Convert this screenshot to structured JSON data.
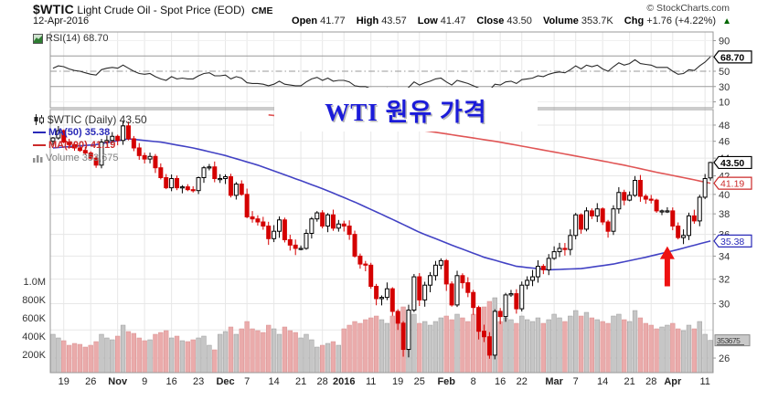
{
  "header": {
    "symbol": "$WTIC",
    "title": "Light Crude Oil - Spot Price (EOD)",
    "exchange": "CME",
    "date": "12-Apr-2016",
    "copyright": "© StockCharts.com",
    "quote": [
      {
        "label": "Open",
        "value": "41.77"
      },
      {
        "label": "High",
        "value": "43.57"
      },
      {
        "label": "Low",
        "value": "41.47"
      },
      {
        "label": "Close",
        "value": "43.50"
      },
      {
        "label": "Volume",
        "value": "353.7K"
      },
      {
        "label": "Chg",
        "value": "+1.76 (+4.22%)"
      }
    ],
    "change_direction": "up"
  },
  "rsi_legend": "RSI(14) 68.70",
  "main_legend": {
    "symbol_line": "$WTIC (Daily) 43.50",
    "ma50_line": "MA(50) 35.38",
    "ma200_line": "MA(200) 41.19",
    "volume_line": "Volume 353,675"
  },
  "overlay": {
    "text": "WTI 원유 가격"
  },
  "colors": {
    "up_candle": "#000000",
    "down_candle": "#d40000",
    "ma50": "#4242c4",
    "ma200": "#e05555",
    "volume_up": "#c6c6c6",
    "volume_down": "#eaabab",
    "rsi_line": "#2a2a2a",
    "grid": "#e7e7e7",
    "panel_border": "#999999",
    "axis_text": "#333333",
    "arrow": "#ee1111",
    "overlay_text": "#1b1bd9",
    "change_up": "#006600",
    "last_price_box": "#000000",
    "ma200_box": "#cc2a2a",
    "ma50_box": "#2a2ab8",
    "volume_box_bg": "#c9c9c9",
    "volume_box_border": "#8a8a8a",
    "volume_box_text": "#3c3c3c"
  },
  "axis_labels": {
    "price_ticks": [
      48,
      46,
      44,
      42,
      40,
      38,
      36,
      34,
      32,
      30,
      26
    ],
    "rsi_ticks": [
      90,
      50,
      30,
      10
    ],
    "volume_ticks": [
      [
        "1.0M",
        1000
      ],
      [
        "800K",
        800
      ],
      [
        "600K",
        600
      ],
      [
        "400K",
        400
      ],
      [
        "200K",
        200
      ]
    ],
    "last_price_label": "43.50",
    "ma200_label": "41.19",
    "ma50_label": "35.38",
    "rsi_last_label": "68.70",
    "volume_last_label": "353675"
  },
  "x_ticks": [
    {
      "i": 2,
      "label": "19",
      "bold": false
    },
    {
      "i": 7,
      "label": "26",
      "bold": false
    },
    {
      "i": 12,
      "label": "Nov",
      "bold": true
    },
    {
      "i": 17,
      "label": "9",
      "bold": false
    },
    {
      "i": 22,
      "label": "16",
      "bold": false
    },
    {
      "i": 27,
      "label": "23",
      "bold": false
    },
    {
      "i": 32,
      "label": "Dec",
      "bold": true
    },
    {
      "i": 36,
      "label": "7",
      "bold": false
    },
    {
      "i": 41,
      "label": "14",
      "bold": false
    },
    {
      "i": 46,
      "label": "21",
      "bold": false
    },
    {
      "i": 50,
      "label": "28",
      "bold": false
    },
    {
      "i": 54,
      "label": "2016",
      "bold": true
    },
    {
      "i": 59,
      "label": "11",
      "bold": false
    },
    {
      "i": 64,
      "label": "19",
      "bold": false
    },
    {
      "i": 68,
      "label": "25",
      "bold": false
    },
    {
      "i": 73,
      "label": "Feb",
      "bold": true
    },
    {
      "i": 78,
      "label": "8",
      "bold": false
    },
    {
      "i": 83,
      "label": "16",
      "bold": false
    },
    {
      "i": 87,
      "label": "22",
      "bold": false
    },
    {
      "i": 93,
      "label": "Mar",
      "bold": true
    },
    {
      "i": 97,
      "label": "7",
      "bold": false
    },
    {
      "i": 102,
      "label": "14",
      "bold": false
    },
    {
      "i": 107,
      "label": "21",
      "bold": false
    },
    {
      "i": 111,
      "label": "28",
      "bold": false
    },
    {
      "i": 115,
      "label": "Apr",
      "bold": true
    },
    {
      "i": 121,
      "label": "11",
      "bold": false
    }
  ],
  "annotation": {
    "type": "arrow-up",
    "index": 114,
    "tip_price": 34.9,
    "tail_price": 31.4
  },
  "chart_data": [
    {
      "type": "line",
      "id": "rsi",
      "title": "RSI(14)",
      "last_value": 68.7,
      "ylim": [
        0,
        100
      ],
      "overbought": 70,
      "oversold": 30,
      "midline": 50,
      "values": [
        54,
        57,
        56,
        53,
        51,
        50,
        48,
        46,
        45,
        52,
        54,
        55,
        54,
        58,
        54,
        50,
        47,
        46,
        47,
        43,
        40,
        38,
        43,
        40,
        41,
        40,
        40,
        44,
        47,
        48,
        44,
        44,
        45,
        40,
        43,
        41,
        35,
        34,
        34,
        33,
        31,
        33,
        37,
        33,
        32,
        31,
        31,
        36,
        40,
        42,
        38,
        41,
        37,
        38,
        38,
        36,
        31,
        30,
        30,
        27,
        25,
        25,
        28,
        24,
        22,
        19,
        29,
        36,
        32,
        35,
        37,
        40,
        41,
        36,
        32,
        38,
        36,
        34,
        31,
        28,
        27,
        25,
        33,
        32,
        36,
        37,
        34,
        39,
        40,
        41,
        44,
        43,
        46,
        48,
        49,
        48,
        52,
        57,
        53,
        58,
        56,
        58,
        53,
        50,
        56,
        61,
        58,
        60,
        65,
        60,
        59,
        58,
        55,
        55,
        55,
        50,
        46,
        47,
        52,
        51,
        57,
        62,
        69
      ]
    },
    {
      "type": "candlestick",
      "id": "price",
      "title": "$WTIC (Daily)",
      "last_close": 43.5,
      "ylim": [
        25.0,
        50.0
      ],
      "scale": "log",
      "first_open": 46.0,
      "last_candle": {
        "open": 41.77,
        "high": 43.57,
        "low": 41.47,
        "close": 43.5
      },
      "closes": [
        46.4,
        47.3,
        45.9,
        45.6,
        45.2,
        44.9,
        44.6,
        44.0,
        43.2,
        45.9,
        46.1,
        46.6,
        46.1,
        47.9,
        46.3,
        45.2,
        44.3,
        43.9,
        44.2,
        42.9,
        41.8,
        40.7,
        41.7,
        40.7,
        40.8,
        40.5,
        40.4,
        41.8,
        42.9,
        43.0,
        41.7,
        41.7,
        41.9,
        39.9,
        41.1,
        40.0,
        37.7,
        37.5,
        37.2,
        36.8,
        35.6,
        36.3,
        37.4,
        35.5,
        35.0,
        34.7,
        34.7,
        36.1,
        37.5,
        38.1,
        36.8,
        37.9,
        36.6,
        37.0,
        36.8,
        36.0,
        34.0,
        33.3,
        33.2,
        31.4,
        30.4,
        30.5,
        31.2,
        29.4,
        28.5,
        26.6,
        29.5,
        32.2,
        30.3,
        31.5,
        32.3,
        33.2,
        33.6,
        31.6,
        29.9,
        32.3,
        31.7,
        30.9,
        29.7,
        27.9,
        27.5,
        26.2,
        29.4,
        29.0,
        30.7,
        30.8,
        29.6,
        31.5,
        31.9,
        32.2,
        33.1,
        32.8,
        33.8,
        34.4,
        34.7,
        34.6,
        35.9,
        37.9,
        36.5,
        38.3,
        37.8,
        38.5,
        37.2,
        36.3,
        38.5,
        40.2,
        39.4,
        39.9,
        41.5,
        39.8,
        39.5,
        39.4,
        38.3,
        38.3,
        38.3,
        36.8,
        35.7,
        35.9,
        37.8,
        37.3,
        39.7,
        41.7,
        43.5
      ],
      "volumes_k": [
        420,
        380,
        350,
        300,
        320,
        310,
        280,
        300,
        340,
        420,
        380,
        360,
        400,
        520,
        450,
        430,
        380,
        350,
        360,
        420,
        440,
        460,
        380,
        400,
        350,
        340,
        360,
        380,
        400,
        300,
        250,
        420,
        450,
        500,
        420,
        480,
        560,
        480,
        460,
        440,
        520,
        480,
        420,
        500,
        460,
        440,
        380,
        420,
        360,
        280,
        300,
        320,
        340,
        300,
        480,
        520,
        560,
        540,
        580,
        600,
        620,
        580,
        540,
        620,
        660,
        720,
        680,
        640,
        540,
        560,
        520,
        560,
        600,
        620,
        580,
        640,
        600,
        560,
        640,
        700,
        720,
        780,
        820,
        560,
        600,
        580,
        540,
        620,
        580,
        560,
        600,
        540,
        580,
        640,
        600,
        560,
        620,
        680,
        620,
        660,
        600,
        580,
        560,
        540,
        620,
        640,
        580,
        560,
        680,
        600,
        540,
        520,
        480,
        500,
        520,
        540,
        480,
        460,
        520,
        480,
        560,
        420,
        354
      ],
      "volume_axis_max_k": 1000,
      "ma50": [
        [
          0,
          45.2
        ],
        [
          8,
          45.6
        ],
        [
          14,
          46.3
        ],
        [
          20,
          45.9
        ],
        [
          26,
          45.2
        ],
        [
          32,
          44.3
        ],
        [
          38,
          43.2
        ],
        [
          44,
          41.9
        ],
        [
          50,
          40.6
        ],
        [
          56,
          39.2
        ],
        [
          62,
          37.7
        ],
        [
          68,
          36.2
        ],
        [
          74,
          35.0
        ],
        [
          80,
          33.9
        ],
        [
          86,
          33.1
        ],
        [
          92,
          32.8
        ],
        [
          98,
          32.9
        ],
        [
          104,
          33.3
        ],
        [
          110,
          33.9
        ],
        [
          116,
          34.6
        ],
        [
          122,
          35.38
        ]
      ],
      "ma200": [
        [
          40,
          49.3
        ],
        [
          46,
          48.9
        ],
        [
          52,
          48.5
        ],
        [
          58,
          48.1
        ],
        [
          64,
          47.7
        ],
        [
          70,
          47.2
        ],
        [
          76,
          46.6
        ],
        [
          82,
          46.0
        ],
        [
          88,
          45.3
        ],
        [
          94,
          44.6
        ],
        [
          100,
          43.9
        ],
        [
          106,
          43.2
        ],
        [
          112,
          42.4
        ],
        [
          117,
          41.8
        ],
        [
          122,
          41.19
        ]
      ]
    }
  ]
}
